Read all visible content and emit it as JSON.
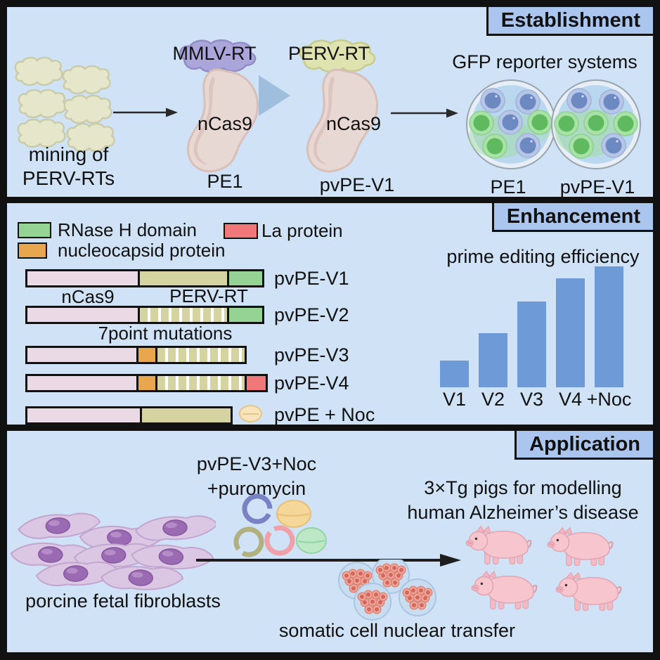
{
  "colors": {
    "panel_bg": "#d0e2f6",
    "header_bg": "#abc6ee",
    "ink": "#111111",
    "bar_blue": "#6f9ad8",
    "seg_ncas9": "#e9dae5",
    "seg_rt": "#d5d3a0",
    "seg_rnaseh": "#95d395",
    "seg_la": "#f0787a",
    "seg_nc": "#e9a74d",
    "pill_fill": "#f7e4ba",
    "pill_edge": "#e2c68e"
  },
  "chart_data": {
    "type": "bar",
    "title": "prime editing efficiency",
    "categories": [
      "V1",
      "V2",
      "V3",
      "V4",
      "+Noc"
    ],
    "values": [
      22,
      45,
      71,
      90,
      100
    ],
    "ylim": [
      0,
      100
    ],
    "bar_color": "#6f9ad8",
    "gridlines": false
  },
  "establishment": {
    "header": "Establishment",
    "mining_label": [
      "mining of",
      "PERV-RTs"
    ],
    "pe1": {
      "rt_label": "MMLV-RT",
      "cas_label": "nCas9",
      "name": "PE1"
    },
    "pvpe_v1": {
      "rt_label": "PERV-RT",
      "cas_label": "nCas9",
      "name": "pvPE-V1"
    },
    "gfp_title": "GFP reporter systems",
    "dish_labels": [
      "PE1",
      "pvPE-V1"
    ]
  },
  "enhancement": {
    "header": "Enhancement",
    "legend": [
      {
        "label": "RNase H domain",
        "color": "#95d395"
      },
      {
        "label": "La protein",
        "color": "#f0787a"
      },
      {
        "label": "nucleocapsid protein",
        "color": "#e9a74d"
      }
    ],
    "domain_labels": {
      "ncas9": "nCas9",
      "perv_rt": "PERV-RT",
      "mutations": "7point mutations"
    },
    "constructs": [
      {
        "name": "pvPE-V1",
        "segments": [
          {
            "type": "ncas9",
            "w": 157
          },
          {
            "type": "rt",
            "w": 127
          },
          {
            "type": "rnaseh",
            "w": 50
          }
        ]
      },
      {
        "name": "pvPE-V2",
        "segments": [
          {
            "type": "ncas9",
            "w": 157
          },
          {
            "type": "rt-mut",
            "w": 127
          },
          {
            "type": "rnaseh",
            "w": 50
          }
        ]
      },
      {
        "name": "pvPE-V3",
        "segments": [
          {
            "type": "ncas9",
            "w": 155
          },
          {
            "type": "nc",
            "w": 27
          },
          {
            "type": "rt-mut",
            "w": 127
          }
        ]
      },
      {
        "name": "pvPE-V4",
        "segments": [
          {
            "type": "ncas9",
            "w": 155
          },
          {
            "type": "nc",
            "w": 27
          },
          {
            "type": "rt-mut",
            "w": 127
          },
          {
            "type": "la",
            "w": 30
          }
        ]
      },
      {
        "name": "pvPE + Noc",
        "segments": [
          {
            "type": "ncas9",
            "w": 160
          },
          {
            "type": "rt",
            "w": 129
          }
        ]
      }
    ]
  },
  "application": {
    "header": "Application",
    "treatment_label": [
      "pvPE-V3+Noc",
      "+puromycin"
    ],
    "fibroblast_label": "porcine fetal fibroblasts",
    "scnt_label": "somatic cell nuclear transfer",
    "pigs_label": [
      "3×Tg pigs for modelling",
      "human Alzheimer’s disease"
    ]
  }
}
